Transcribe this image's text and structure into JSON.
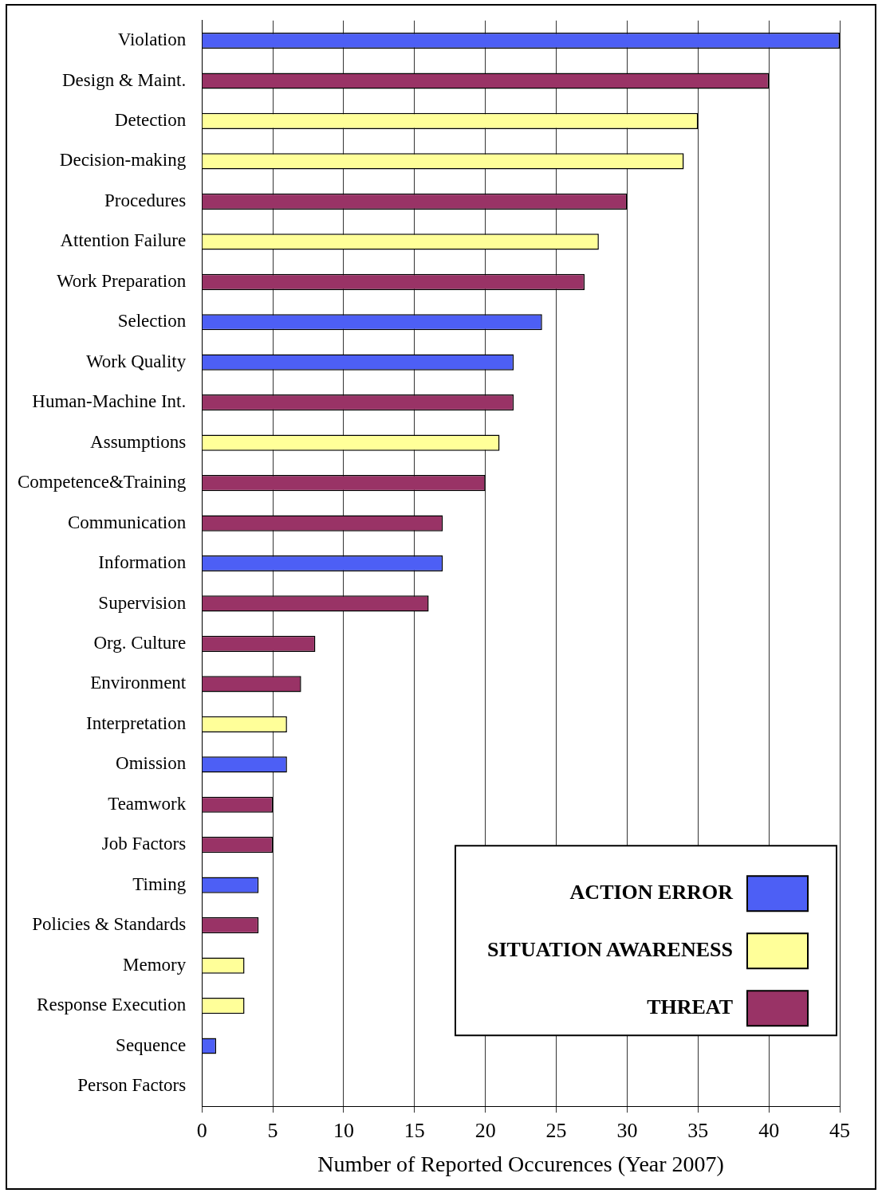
{
  "chart_data": {
    "type": "bar",
    "orientation": "horizontal",
    "xlabel": "Number of Reported Occurences (Year 2007)",
    "categories": [
      "Violation",
      "Design & Maint.",
      "Detection",
      "Decision-making",
      "Procedures",
      "Attention Failure",
      "Work Preparation",
      "Selection",
      "Work Quality",
      "Human-Machine Int.",
      "Assumptions",
      "Competence&Training",
      "Communication",
      "Information",
      "Supervision",
      "Org. Culture",
      "Environment",
      "Interpretation",
      "Omission",
      "Teamwork",
      "Job Factors",
      "Timing",
      "Policies & Standards",
      "Memory",
      "Response Execution",
      "Sequence",
      "Person Factors"
    ],
    "series": [
      {
        "name": "ACTION ERROR",
        "color": "#4d5ff5",
        "values": [
          45,
          null,
          null,
          null,
          null,
          null,
          null,
          24,
          22,
          null,
          null,
          null,
          null,
          17,
          null,
          null,
          null,
          null,
          6,
          null,
          null,
          4,
          null,
          null,
          null,
          1,
          null
        ]
      },
      {
        "name": "SITUATION AWARENESS",
        "color": "#ffff99",
        "values": [
          null,
          null,
          35,
          34,
          null,
          28,
          null,
          null,
          null,
          null,
          21,
          null,
          null,
          null,
          null,
          null,
          null,
          6,
          null,
          null,
          null,
          null,
          null,
          3,
          3,
          null,
          null
        ]
      },
      {
        "name": "THREAT",
        "color": "#993366",
        "values": [
          null,
          40,
          null,
          null,
          30,
          null,
          27,
          null,
          null,
          22,
          null,
          20,
          17,
          null,
          16,
          8,
          7,
          null,
          null,
          5,
          5,
          null,
          4,
          null,
          null,
          null,
          0
        ]
      }
    ],
    "xlim": [
      0,
      45
    ],
    "xticks": [
      0,
      5,
      10,
      15,
      20,
      25,
      30,
      35,
      40,
      45
    ],
    "grid": "x",
    "legend": "bottom right"
  }
}
